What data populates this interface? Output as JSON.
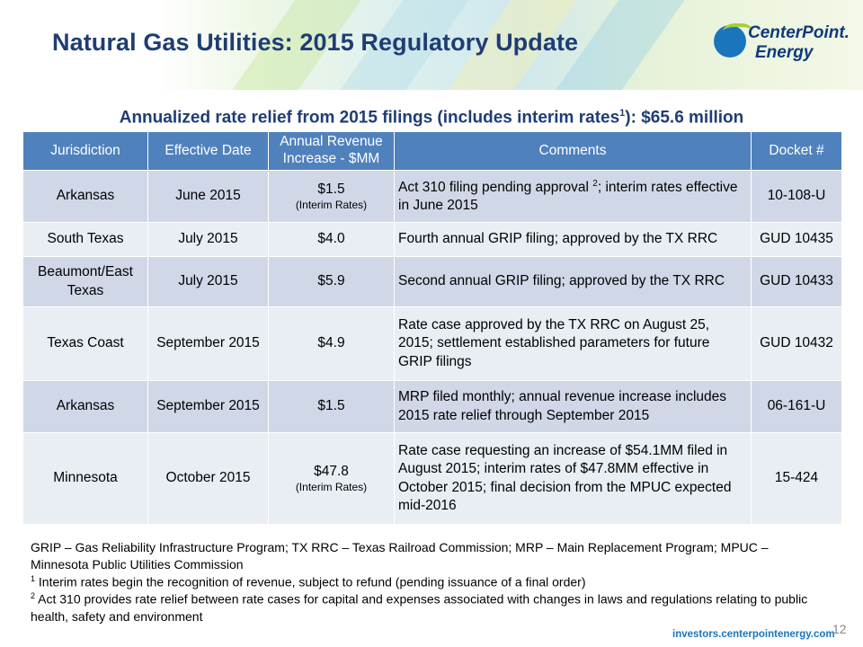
{
  "title": "Natural Gas Utilities:  2015 Regulatory Update",
  "logo": {
    "line1": "CenterPoint.",
    "line2": "Energy"
  },
  "subtitle": {
    "before_sup": "Annualized rate relief from 2015 filings (includes interim rates",
    "sup": "1",
    "after_sup": "): $65.6 million"
  },
  "table": {
    "headers": [
      "Jurisdiction",
      "Effective Date",
      "Annual Revenue Increase - $MM",
      "Comments",
      "Docket #"
    ],
    "rows": [
      {
        "jurisdiction": "Arkansas",
        "date": "June 2015",
        "amount": "$1.5",
        "note": "(Interim Rates)",
        "comment_pre": "Act 310 filing pending approval ",
        "comment_sup": "2",
        "comment_post": "; interim rates effective in June 2015",
        "docket": "10-108-U"
      },
      {
        "jurisdiction": "South Texas",
        "date": "July 2015",
        "amount": "$4.0",
        "comment": "Fourth annual GRIP filing; approved by the TX RRC",
        "docket": "GUD 10435"
      },
      {
        "jurisdiction": "Beaumont/East Texas",
        "date": "July 2015",
        "amount": "$5.9",
        "comment": "Second annual GRIP filing; approved by the TX RRC",
        "docket": "GUD 10433"
      },
      {
        "jurisdiction": "Texas Coast",
        "date": "September 2015",
        "amount": "$4.9",
        "comment": "Rate case approved by the TX RRC on August 25, 2015; settlement established parameters for future GRIP filings",
        "docket": "GUD 10432"
      },
      {
        "jurisdiction": "Arkansas",
        "date": "September 2015",
        "amount": "$1.5",
        "comment": "MRP filed monthly; annual revenue increase includes 2015 rate relief through September 2015",
        "docket": "06-161-U"
      },
      {
        "jurisdiction": "Minnesota",
        "date": "October 2015",
        "amount": "$47.8",
        "note": "(Interim Rates)",
        "comment": "Rate case requesting an increase of $54.1MM filed in August 2015; interim rates of $47.8MM effective in October 2015; final decision from the MPUC expected mid-2016",
        "docket": "15-424"
      }
    ]
  },
  "footnotes": {
    "abbrev": "GRIP – Gas Reliability Infrastructure Program; TX RRC – Texas Railroad Commission; MRP – Main Replacement Program; MPUC – Minnesota Public Utilities Commission",
    "note1_mark": "1",
    "note1_text": " Interim rates begin the recognition of revenue, subject to refund (pending issuance of a final order)",
    "note2_mark": "2",
    "note2_text": " Act 310 provides rate relief between rate cases for capital and expenses associated with changes in laws and regulations relating to public health, safety and environment"
  },
  "url": "investors.centerpointenergy.com",
  "page_number": "12",
  "colors": {
    "title": "#1f3d73",
    "header_bg": "#4f81bd",
    "row_dark": "#d0d8e8",
    "row_light": "#e9edf4",
    "brand_blue": "#1b75bc",
    "brand_green": "#a6ce39"
  }
}
